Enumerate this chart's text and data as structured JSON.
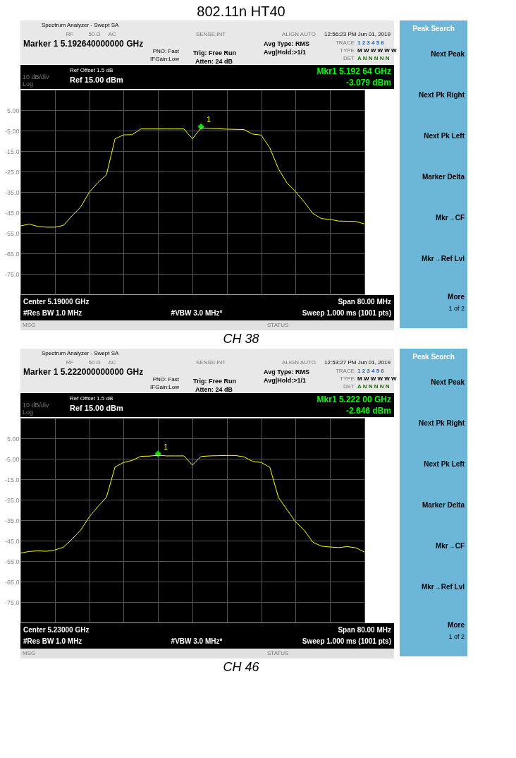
{
  "chart_data": [
    {
      "type": "line",
      "title": "802.11n HT40",
      "categories": [
        null,
        null,
        null,
        null,
        null,
        null,
        null,
        null,
        null,
        null,
        null,
        null,
        null,
        null,
        null,
        null,
        null,
        null,
        null,
        null,
        null,
        null,
        null,
        null,
        null,
        null,
        null,
        null,
        null,
        null,
        null,
        null,
        null,
        null,
        null,
        null,
        null,
        null,
        null,
        null,
        null
      ],
      "series": [
        {
          "type": "scatter",
          "marker": "diamond",
          "color": "#00dd00",
          "values": [
            null,
            null,
            null,
            null,
            null,
            null,
            null,
            null,
            null,
            null,
            null,
            null,
            null,
            null,
            null,
            null,
            null,
            null,
            null,
            null,
            null,
            -3.1,
            null,
            null,
            null,
            null,
            null,
            null,
            null,
            null,
            null,
            null,
            null,
            null,
            null,
            null,
            null,
            null,
            null,
            null,
            null
          ]
        },
        {
          "color": "#ffff00",
          "values": [
            -51.6,
            -50.7,
            -51.8,
            -52.2,
            -52.2,
            -51.3,
            -46.6,
            -42.4,
            -35.1,
            -30.4,
            -26.6,
            -9.0,
            -7.1,
            -7.0,
            -4.2,
            -4.2,
            -4.2,
            -4.2,
            -4.2,
            -4.2,
            -9.0,
            -3.7,
            -4.0,
            -4.1,
            -4.3,
            -4.4,
            -4.5,
            -6.7,
            -7.2,
            -13.5,
            -23.7,
            -30.6,
            -34.9,
            -39.9,
            -45.5,
            -48.0,
            -48.4,
            -49.2,
            -49.3,
            -49.4,
            -50.6
          ]
        }
      ],
      "ylim": [
        -85,
        15
      ],
      "yticks": [
        {
          "value": 5,
          "label": "5.00"
        },
        {
          "value": -5,
          "label": "-5.00"
        },
        {
          "value": -15,
          "label": "-15.0"
        },
        {
          "value": -25,
          "label": "-25.0"
        },
        {
          "value": -35,
          "label": "-35.0"
        },
        {
          "value": -45,
          "label": "-45.0"
        },
        {
          "value": -55,
          "label": "-55.0"
        },
        {
          "value": -65,
          "label": "-65.0"
        },
        {
          "value": -75,
          "label": "-75.0"
        }
      ],
      "grid": true,
      "tick_labels": "y",
      "annotations": [
        "Spectrum Analyzer - Swept SA",
        "RF",
        "50 Ω",
        "AC",
        "SENSE:INT",
        "ALIGN AUTO",
        "12:56:23 PM Jun 01, 2019",
        "Marker 1 5.192640000000 GHz",
        "PNO: Fast",
        "IFGain:Low",
        "Trig: Free Run",
        "Atten: 24 dB",
        "Avg Type: RMS",
        "Avg|Hold:>1/1",
        "TRACE",
        "1 2 3 4 5 6",
        "TYPE",
        "M W W W W W",
        "DET",
        "A N N N N N",
        "Ref Offset 1.5 dB",
        "10 dB/div",
        "Ref 15.00 dBm",
        "Mkr1 5.192 64 GHz",
        "-3.079 dBm",
        "Log",
        "Center 5.19000 GHz",
        "Span 80.00 MHz",
        "#Res BW 1.0 MHz",
        "#VBW 3.0 MHz*",
        "Sweep  1.000 ms (1001 pts)",
        "MSG",
        "STATUS",
        "Peak Search",
        "Next Peak",
        "Next Pk Right",
        "Next Pk Left",
        "Marker Delta",
        "Mkr→CF",
        "Mkr→Ref Lvl",
        "More",
        "1 of 2",
        "CH 38",
        "1"
      ]
    },
    {
      "type": "line",
      "categories": [
        null,
        null,
        null,
        null,
        null,
        null,
        null,
        null,
        null,
        null,
        null,
        null,
        null,
        null,
        null,
        null,
        null,
        null,
        null,
        null,
        null,
        null,
        null,
        null,
        null,
        null,
        null,
        null,
        null,
        null,
        null,
        null,
        null,
        null,
        null,
        null,
        null,
        null,
        null,
        null,
        null
      ],
      "series": [
        {
          "type": "scatter",
          "marker": "diamond",
          "color": "#00dd00",
          "values": [
            null,
            null,
            null,
            null,
            null,
            null,
            null,
            null,
            null,
            null,
            null,
            null,
            null,
            null,
            null,
            null,
            -2.6,
            null,
            null,
            null,
            null,
            null,
            null,
            null,
            null,
            null,
            null,
            null,
            null,
            null,
            null,
            null,
            null,
            null,
            null,
            null,
            null,
            null,
            null,
            null,
            null
          ]
        },
        {
          "color": "#ffff00",
          "values": [
            -51.1,
            -50.3,
            -50.0,
            -50.2,
            -49.6,
            -48.2,
            -44.3,
            -39.9,
            -33.4,
            -28.4,
            -23.8,
            -9.0,
            -6.8,
            -5.8,
            -3.8,
            -3.7,
            -3.3,
            -3.6,
            -3.6,
            -3.6,
            -8.0,
            -3.9,
            -3.6,
            -3.5,
            -3.4,
            -3.4,
            -4.1,
            -6.3,
            -6.8,
            -9.2,
            -23.9,
            -29.9,
            -35.9,
            -39.9,
            -45.8,
            -47.7,
            -48.1,
            -48.4,
            -47.9,
            -48.5,
            -50.6
          ]
        }
      ],
      "ylim": [
        -85,
        15
      ],
      "yticks": [
        {
          "value": 5,
          "label": "5.00"
        },
        {
          "value": -5,
          "label": "-5.00"
        },
        {
          "value": -15,
          "label": "-15.0"
        },
        {
          "value": -25,
          "label": "-25.0"
        },
        {
          "value": -35,
          "label": "-35.0"
        },
        {
          "value": -45,
          "label": "-45.0"
        },
        {
          "value": -55,
          "label": "-55.0"
        },
        {
          "value": -65,
          "label": "-65.0"
        },
        {
          "value": -75,
          "label": "-75.0"
        }
      ],
      "grid": true,
      "tick_labels": "y",
      "annotations": [
        "Spectrum Analyzer - Swept SA",
        "RF",
        "50 Ω",
        "AC",
        "SENSE:INT",
        "ALIGN AUTO",
        "12:53:27 PM Jun 01, 2019",
        "Marker 1 5.222000000000 GHz",
        "PNO: Fast",
        "IFGain:Low",
        "Trig: Free Run",
        "Atten: 24 dB",
        "Avg Type: RMS",
        "Avg|Hold:>1/1",
        "TRACE",
        "1 2 3 4 5 6",
        "TYPE",
        "M W W W W W",
        "DET",
        "A N N N N N",
        "Ref Offset 1.5 dB",
        "10 dB/div",
        "Ref 15.00 dBm",
        "Mkr1 5.222 00 GHz",
        "-2.646 dBm",
        "Log",
        "Center 5.23000 GHz",
        "Span 80.00 MHz",
        "#Res BW 1.0 MHz",
        "#VBW 3.0 MHz*",
        "Sweep  1.000 ms (1001 pts)",
        "MSG",
        "STATUS",
        "Peak Search",
        "Next Peak",
        "Next Pk Right",
        "Next Pk Left",
        "Marker Delta",
        "Mkr→CF",
        "Mkr→Ref Lvl",
        "More",
        "1 of 2",
        "CH 46",
        "1"
      ]
    }
  ]
}
